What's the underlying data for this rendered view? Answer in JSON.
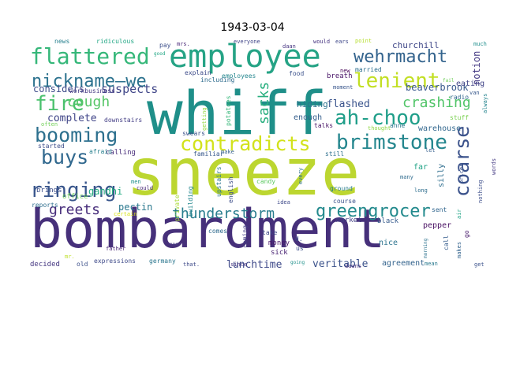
{
  "chart_data": {
    "type": "wordcloud",
    "title": "1943-03-04",
    "background": "#ffffff",
    "words": [
      {
        "text": "bombardment",
        "color": "#46307a"
      },
      {
        "text": "sneeze",
        "color": "#bcd630"
      },
      {
        "text": "whiff",
        "color": "#1f8f89"
      },
      {
        "text": "employee",
        "color": "#25a385"
      },
      {
        "text": "wehrmacht",
        "color": "#33638d"
      },
      {
        "text": "flattered",
        "color": "#35b779"
      },
      {
        "text": "nickname—we",
        "color": "#2c728e"
      },
      {
        "text": "lenient",
        "color": "#c2df23"
      },
      {
        "text": "fire",
        "color": "#4ac16d"
      },
      {
        "text": "cough",
        "color": "#56c667"
      },
      {
        "text": "crashing",
        "color": "#52c569"
      },
      {
        "text": "ah-choo",
        "color": "#1f9e89"
      },
      {
        "text": "booming",
        "color": "#2d708e"
      },
      {
        "text": "brimstone",
        "color": "#24868e"
      },
      {
        "text": "contradicts",
        "color": "#d2e21b"
      },
      {
        "text": "buys",
        "color": "#30688e"
      },
      {
        "text": "sacks",
        "color": "#29af7f"
      },
      {
        "text": "coarse",
        "color": "#3b528b"
      },
      {
        "text": "ringing",
        "color": "#39568c"
      },
      {
        "text": "greets",
        "color": "#472d7b"
      },
      {
        "text": "greengrocer",
        "color": "#238a8d"
      },
      {
        "text": "thunderstorm",
        "color": "#287d8e"
      },
      {
        "text": "suspects",
        "color": "#404688"
      },
      {
        "text": "considers",
        "color": "#3e4c8a"
      },
      {
        "text": "complete",
        "color": "#404588"
      },
      {
        "text": "flashed",
        "color": "#3a548c"
      },
      {
        "text": "beaverbrook",
        "color": "#38588c"
      },
      {
        "text": "notion",
        "color": "#443983"
      },
      {
        "text": "pectin",
        "color": "#2a788e"
      },
      {
        "text": "gandhi",
        "color": "#26ad81"
      },
      {
        "text": "lunchtime",
        "color": "#3e4989"
      },
      {
        "text": "veritable",
        "color": "#3b528b"
      },
      {
        "text": "agreement",
        "color": "#33638d"
      },
      {
        "text": "churchill",
        "color": "#3f4788"
      },
      {
        "text": "eating",
        "color": "#414487"
      },
      {
        "text": "hiding",
        "color": "#2c728e"
      },
      {
        "text": "enough",
        "color": "#355f8d"
      },
      {
        "text": "breath",
        "color": "#481467"
      },
      {
        "text": "warehouse",
        "color": "#31678e"
      },
      {
        "text": "silly",
        "color": "#2e6d8e"
      },
      {
        "text": "calling",
        "color": "#472c7a"
      },
      {
        "text": "brings",
        "color": "#3c4f8a"
      },
      {
        "text": "english",
        "color": "#3d4e8a"
      },
      {
        "text": "upstairs",
        "color": "#2a768e"
      },
      {
        "text": "pepper",
        "color": "#470e61"
      },
      {
        "text": "nice",
        "color": "#2c738e"
      },
      {
        "text": "money",
        "color": "#481769"
      },
      {
        "text": "sick",
        "color": "#482273"
      },
      {
        "text": "market",
        "color": "#423f85"
      },
      {
        "text": "black",
        "color": "#375b8d"
      },
      {
        "text": "far",
        "color": "#20a386"
      },
      {
        "text": "decided",
        "color": "#453781"
      },
      {
        "text": "office",
        "color": "#6ccd5a"
      },
      {
        "text": "expressions",
        "color": "#3e4a89"
      },
      {
        "text": "germany",
        "color": "#2a768e"
      },
      {
        "text": "reports",
        "color": "#2e6e8e"
      },
      {
        "text": "afraid",
        "color": "#27808e"
      },
      {
        "text": "started",
        "color": "#3d4d8a"
      },
      {
        "text": "familiar",
        "color": "#38598c"
      },
      {
        "text": "swears",
        "color": "#3b528b"
      },
      {
        "text": "downstairs",
        "color": "#433e85"
      },
      {
        "text": "workbusiness",
        "color": "#453882"
      },
      {
        "text": "explain",
        "color": "#3e4c8a"
      },
      {
        "text": "including",
        "color": "#2f6c8e"
      },
      {
        "text": "employees",
        "color": "#24868e"
      },
      {
        "text": "potatoes",
        "color": "#35b779"
      },
      {
        "text": "food",
        "color": "#3b518b"
      },
      {
        "text": "married",
        "color": "#2e6f8e"
      },
      {
        "text": "new",
        "color": "#440154"
      },
      {
        "text": "radio",
        "color": "#31678e"
      },
      {
        "text": "stuff",
        "color": "#7ad151"
      },
      {
        "text": "always",
        "color": "#25848e"
      },
      {
        "text": "news",
        "color": "#27808e"
      },
      {
        "text": "ridiculous",
        "color": "#22a785"
      },
      {
        "text": "pay",
        "color": "#3c4f8a"
      },
      {
        "text": "mrs.",
        "color": "#482677"
      },
      {
        "text": "everyone",
        "color": "#404588"
      },
      {
        "text": "daan",
        "color": "#463480"
      },
      {
        "text": "would",
        "color": "#463480"
      },
      {
        "text": "ears",
        "color": "#3f4889"
      },
      {
        "text": "point",
        "color": "#b5de2b"
      },
      {
        "text": "much",
        "color": "#218f8d"
      },
      {
        "text": "talks",
        "color": "#471365"
      },
      {
        "text": "anne",
        "color": "#2a778e"
      },
      {
        "text": "thought",
        "color": "#8fd744"
      },
      {
        "text": "let",
        "color": "#355e8d"
      },
      {
        "text": "still",
        "color": "#2d708e"
      },
      {
        "text": "ground",
        "color": "#287c8e"
      },
      {
        "text": "course",
        "color": "#3b528b"
      },
      {
        "text": "every",
        "color": "#2c718e"
      },
      {
        "text": "coming",
        "color": "#433d84"
      },
      {
        "text": "take",
        "color": "#3f4889"
      },
      {
        "text": "d.",
        "color": "#3c508b"
      },
      {
        "text": "us",
        "color": "#3d4e8a"
      },
      {
        "text": "comes",
        "color": "#2f6b8e"
      },
      {
        "text": "since",
        "color": "#453581"
      },
      {
        "text": "make",
        "color": "#34618d"
      },
      {
        "text": "men",
        "color": "#21918c"
      },
      {
        "text": "could",
        "color": "#482979"
      },
      {
        "text": "building",
        "color": "#24878e"
      },
      {
        "text": "private",
        "color": "#a8db34"
      },
      {
        "text": "father",
        "color": "#482475"
      },
      {
        "text": "mr.",
        "color": "#bddf26"
      },
      {
        "text": "old",
        "color": "#3c4f8a"
      },
      {
        "text": "that.",
        "color": "#3e4a89"
      },
      {
        "text": "mean",
        "color": "#29798e"
      },
      {
        "text": "daans",
        "color": "#46307e"
      },
      {
        "text": "sent",
        "color": "#31668e"
      },
      {
        "text": "call",
        "color": "#365d8d"
      },
      {
        "text": "go",
        "color": "#481a6c"
      },
      {
        "text": "air",
        "color": "#20a486"
      },
      {
        "text": "prices",
        "color": "#3b528b"
      },
      {
        "text": "makes",
        "color": "#33638d"
      },
      {
        "text": "long",
        "color": "#2e6e8e"
      },
      {
        "text": "many",
        "color": "#2f6b8e"
      },
      {
        "text": "moment",
        "color": "#39568c"
      },
      {
        "text": "often",
        "color": "#70cf57"
      },
      {
        "text": "getting",
        "color": "#93d741"
      },
      {
        "text": "candy",
        "color": "#5ec962"
      },
      {
        "text": "idea",
        "color": "#3e4989"
      },
      {
        "text": "certain",
        "color": "#d8e219"
      },
      {
        "text": "nothing",
        "color": "#3d4e8a"
      },
      {
        "text": "words",
        "color": "#443a83"
      },
      {
        "text": "one",
        "color": "#443983"
      },
      {
        "text": "morning",
        "color": "#2c728e"
      },
      {
        "text": "get",
        "color": "#3b528b"
      },
      {
        "text": "going",
        "color": "#21918c"
      },
      {
        "text": "van",
        "color": "#38598c"
      },
      {
        "text": "good",
        "color": "#21a685"
      },
      {
        "text": "fail",
        "color": "#6ece58"
      }
    ]
  }
}
